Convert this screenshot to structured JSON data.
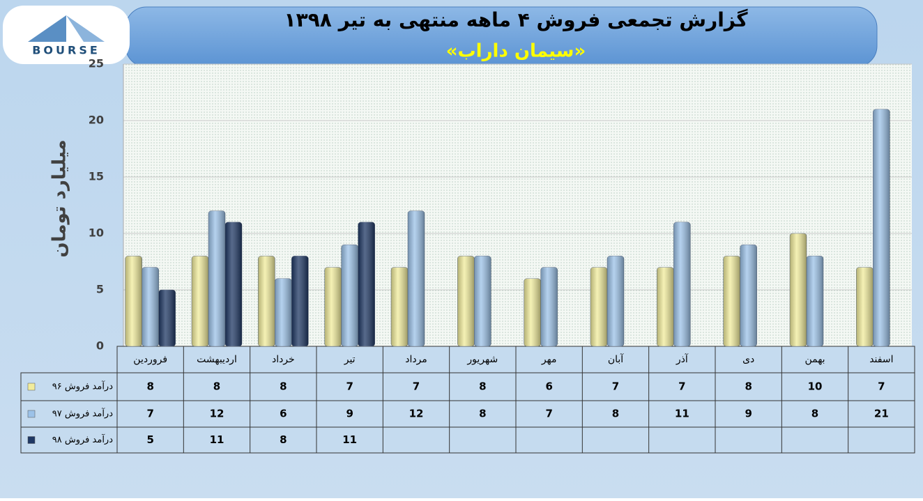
{
  "logo_text": "BOURSE",
  "chart_data": {
    "type": "bar",
    "title": "گزارش تجمعی فروش ۴ ماهه منتهی به تیر ۱۳۹۸",
    "subtitle": "«سیمان داراب»",
    "y_label": "میلیارد تومان",
    "categories": [
      "فروردین",
      "اردیبهشت",
      "خرداد",
      "تیر",
      "مرداد",
      "شهریور",
      "مهر",
      "آبان",
      "آذر",
      "دی",
      "بهمن",
      "اسفند"
    ],
    "series": [
      {
        "name": "درآمد فروش ۹۶",
        "color": "#f1ec9c",
        "values": [
          8,
          8,
          8,
          7,
          7,
          8,
          6,
          7,
          7,
          8,
          10,
          7
        ]
      },
      {
        "name": "درآمد فروش ۹۷",
        "color": "#9cc2e8",
        "values": [
          7,
          12,
          6,
          9,
          12,
          8,
          7,
          8,
          11,
          9,
          8,
          21
        ]
      },
      {
        "name": "درآمد فروش ۹۸",
        "color": "#1f3864",
        "values": [
          5,
          11,
          8,
          11,
          null,
          null,
          null,
          null,
          null,
          null,
          null,
          null
        ]
      }
    ],
    "ylim": [
      0,
      25
    ],
    "yticks": [
      0,
      5,
      10,
      15,
      20,
      25
    ],
    "grid": true
  }
}
